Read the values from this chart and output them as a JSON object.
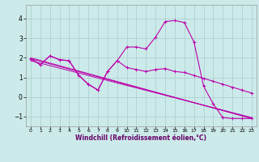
{
  "background_color": "#cceaea",
  "line_color": "#bb00aa",
  "grid_color": "#aacccc",
  "xlabel": "Windchill (Refroidissement éolien,°C)",
  "ylabel": "",
  "xlim": [
    -0.5,
    23.5
  ],
  "ylim": [
    -1.5,
    4.7
  ],
  "yticks": [
    -1,
    0,
    1,
    2,
    3,
    4
  ],
  "xticks": [
    0,
    1,
    2,
    3,
    4,
    5,
    6,
    7,
    8,
    9,
    10,
    11,
    12,
    13,
    14,
    15,
    16,
    17,
    18,
    19,
    20,
    21,
    22,
    23
  ],
  "series1_x": [
    0,
    1,
    2,
    3,
    4,
    5,
    6,
    7,
    8,
    9,
    10,
    11,
    12,
    13,
    14,
    15,
    16,
    17,
    18,
    19,
    20,
    21,
    22,
    23
  ],
  "series1_y": [
    1.95,
    1.65,
    2.1,
    1.9,
    1.85,
    1.1,
    0.65,
    0.35,
    1.3,
    1.85,
    1.5,
    1.4,
    1.3,
    1.4,
    1.45,
    1.3,
    1.25,
    1.1,
    0.95,
    0.8,
    0.65,
    0.5,
    0.35,
    0.2
  ],
  "series2_x": [
    0,
    1,
    2,
    3,
    4,
    5,
    6,
    7,
    8,
    9,
    10,
    11,
    12,
    13,
    14,
    15,
    16,
    17,
    18,
    19,
    20,
    21,
    22,
    23
  ],
  "series2_y": [
    1.95,
    1.65,
    2.1,
    1.9,
    1.85,
    1.1,
    0.65,
    0.35,
    1.3,
    1.85,
    2.55,
    2.55,
    2.45,
    3.05,
    3.85,
    3.9,
    3.8,
    2.8,
    0.55,
    -0.35,
    -1.05,
    -1.1,
    -1.1,
    -1.1
  ],
  "trend1_x": [
    0,
    23
  ],
  "trend1_y": [
    2.0,
    -1.1
  ],
  "trend2_x": [
    0,
    23
  ],
  "trend2_y": [
    1.85,
    -1.05
  ],
  "trend3_x": [
    0,
    23
  ],
  "trend3_y": [
    1.95,
    -1.08
  ],
  "xlabel_color": "#660066",
  "xlabel_fontsize": 5.5,
  "tick_fontsize": 4.5,
  "ytick_fontsize": 5.5
}
